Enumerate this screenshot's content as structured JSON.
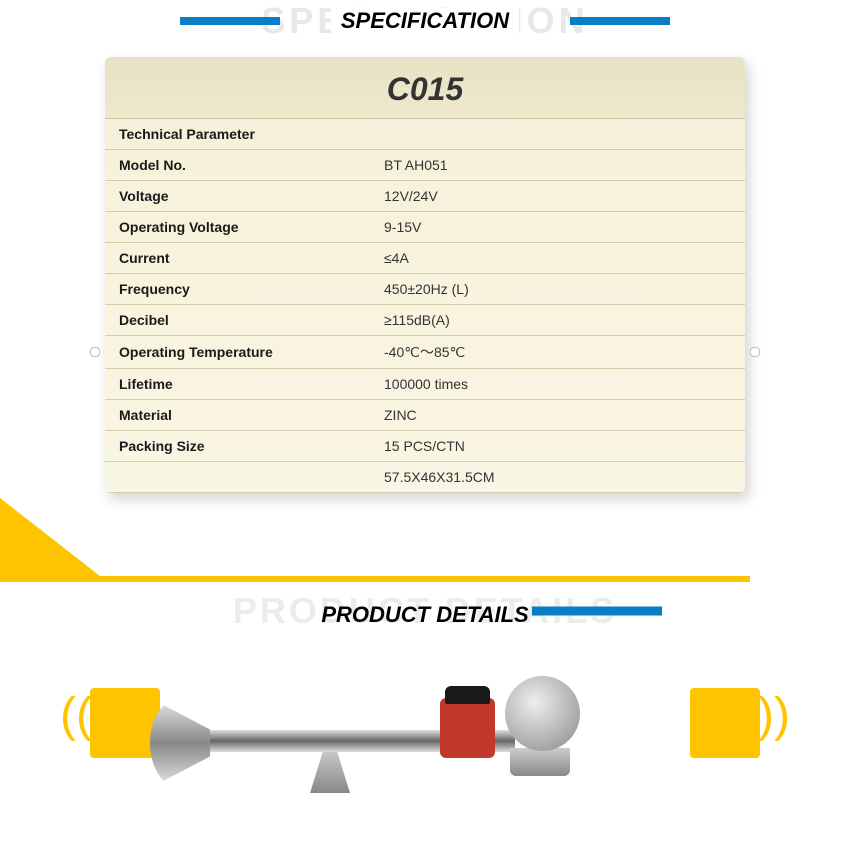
{
  "specification": {
    "bg_title": "SPECIFICATION",
    "title": "SPECIFICATION",
    "card_title": "C015",
    "header_label": "Technical Parameter",
    "rows": [
      {
        "label": "Model No.",
        "value": "BT AH051"
      },
      {
        "label": "Voltage",
        "value": "12V/24V"
      },
      {
        "label": "Operating Voltage",
        "value": "9-15V"
      },
      {
        "label": "Current",
        "value": "≤4A"
      },
      {
        "label": "Frequency",
        "value": "450±20Hz (L)"
      },
      {
        "label": "Decibel",
        "value": "≥115dB(A)"
      },
      {
        "label": "Operating Temperature",
        "value": " -40℃～85℃"
      },
      {
        "label": "Lifetime",
        "value": "100000 times"
      },
      {
        "label": "Material",
        "value": "ZINC"
      },
      {
        "label": "Packing Size",
        "value": "15 PCS/CTN"
      },
      {
        "label": "",
        "value": "57.5X46X31.5CM"
      }
    ]
  },
  "details": {
    "bg_title": "PRODUCT DETAILS",
    "title": "PRODUCT DETAILS"
  },
  "colors": {
    "accent_blue": "#0a7dc7",
    "accent_yellow": "#ffc400",
    "card_bg": "#f5f0d8",
    "compressor_red": "#c0392b"
  }
}
